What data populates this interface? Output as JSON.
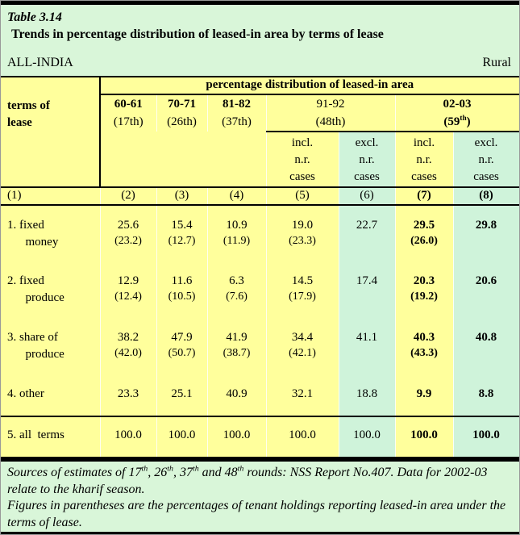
{
  "banner": {
    "table_no": "Table 3.14",
    "title": "Trends in percentage distribution of leased-in area by terms of lease",
    "region_left": "ALL-INDIA",
    "region_right": "Rural"
  },
  "table": {
    "stub_header": "terms of\nlease",
    "span_header": "percentage distribution of leased-in area",
    "year_cols": [
      {
        "year": "60-61",
        "round": "(17th)"
      },
      {
        "year": "70-71",
        "round": "(26th)"
      },
      {
        "year": "81-82",
        "round": "(37th)"
      }
    ],
    "group_9192": {
      "year": "91-92",
      "round": "(48th)"
    },
    "group_0203": {
      "year": "02-03",
      "round_parts": [
        {
          "text": "(59"
        },
        {
          "sup": "th"
        },
        {
          "text": ")"
        }
      ]
    },
    "subheads": {
      "incl": "incl.\nn.r.\ncases",
      "excl": "excl.\nn.r.\ncases"
    },
    "col_numbers": [
      "(1)",
      "(2)",
      "(3)",
      "(4)",
      "(5)",
      "(6)",
      "(7)",
      "(8)"
    ],
    "rows": [
      {
        "label": "1. fixed\n      money",
        "cells": [
          {
            "v": "25.6",
            "p": "(23.2)"
          },
          {
            "v": "15.4",
            "p": "(12.7)"
          },
          {
            "v": "10.9",
            "p": "(11.9)"
          },
          {
            "v": "19.0",
            "p": "(23.3)"
          },
          {
            "v": "22.7"
          },
          {
            "v": "29.5",
            "p": "(26.0)"
          },
          {
            "v": "29.8"
          }
        ]
      },
      {
        "label": "2. fixed\n      produce",
        "cells": [
          {
            "v": "12.9",
            "p": "(12.4)"
          },
          {
            "v": "11.6",
            "p": "(10.5)"
          },
          {
            "v": "6.3",
            "p": "(7.6)"
          },
          {
            "v": "14.5",
            "p": "(17.9)"
          },
          {
            "v": "17.4"
          },
          {
            "v": "20.3",
            "p": "(19.2)"
          },
          {
            "v": "20.6"
          }
        ]
      },
      {
        "label": "3. share of\n      produce",
        "cells": [
          {
            "v": "38.2",
            "p": "(42.0)"
          },
          {
            "v": "47.9",
            "p": "(50.7)"
          },
          {
            "v": "41.9",
            "p": "(38.7)"
          },
          {
            "v": "34.4",
            "p": "(42.1)"
          },
          {
            "v": "41.1"
          },
          {
            "v": "40.3",
            "p": "(43.3)"
          },
          {
            "v": "40.8"
          }
        ]
      },
      {
        "label": "4. other",
        "cells": [
          {
            "v": "23.3"
          },
          {
            "v": "25.1"
          },
          {
            "v": "40.9"
          },
          {
            "v": "32.1"
          },
          {
            "v": "18.8"
          },
          {
            "v": "9.9"
          },
          {
            "v": "8.8"
          }
        ]
      },
      {
        "label": "5. all  terms",
        "cells": [
          {
            "v": "100.0"
          },
          {
            "v": "100.0"
          },
          {
            "v": "100.0"
          },
          {
            "v": "100.0"
          },
          {
            "v": "100.0"
          },
          {
            "v": "100.0"
          },
          {
            "v": "100.0"
          }
        ]
      }
    ]
  },
  "footer": {
    "line1_parts": [
      {
        "text": "Sources of estimates of 17"
      },
      {
        "sup": "th"
      },
      {
        "text": ", 26"
      },
      {
        "sup": "th"
      },
      {
        "text": ", 37"
      },
      {
        "sup": "th"
      },
      {
        "text": " and 48"
      },
      {
        "sup": "th"
      },
      {
        "text": " rounds: NSS Report No.407. Data for 2002-03 relate to the kharif season."
      }
    ],
    "line2": "Figures in parentheses are the percentages of tenant holdings reporting leased-in area under the terms of lease."
  },
  "colors": {
    "yellow": "#ffff9c",
    "green_banner": "#d9f6d9",
    "green_columns": "#cff3da"
  }
}
